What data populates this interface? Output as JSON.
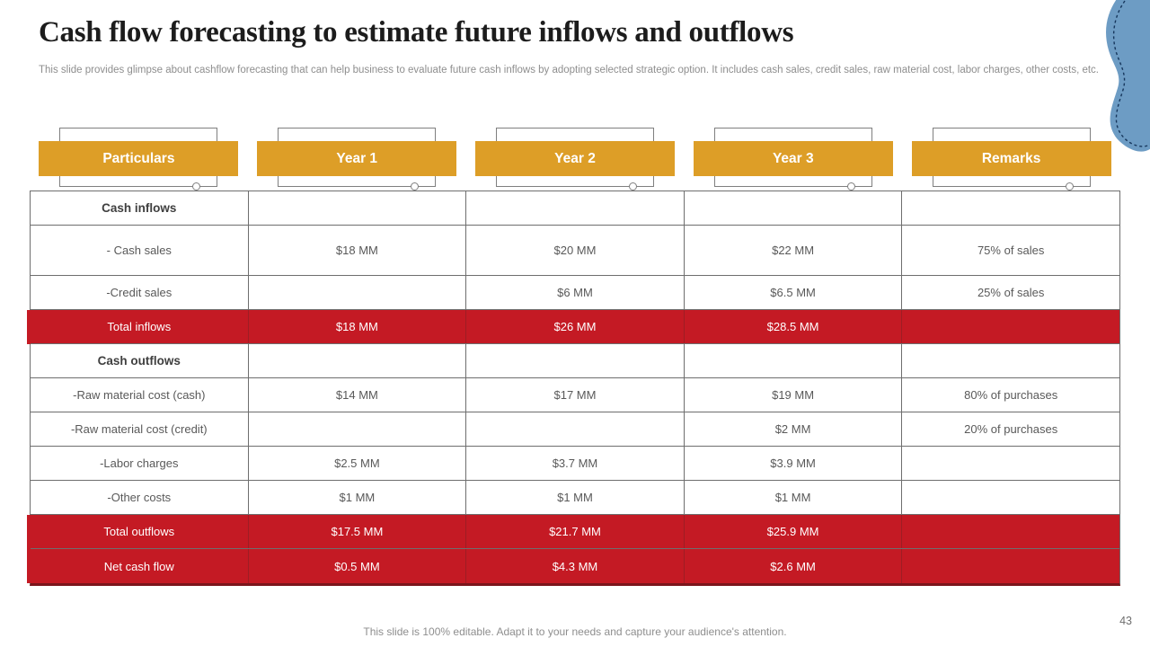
{
  "slide": {
    "title": "Cash flow forecasting to estimate future inflows and outflows",
    "subtitle": "This slide provides glimpse about cashflow forecasting that can help business to evaluate future cash inflows by adopting selected strategic option. It includes cash sales, credit sales, raw material cost, labor charges, other costs, etc.",
    "footer": "This slide is 100% editable. Adapt it to your needs and capture your audience's attention.",
    "page_number": "43"
  },
  "colors": {
    "accent_orange": "#DD9E27",
    "accent_red": "#C41A24",
    "blob_blue": "#6D9CC4",
    "blob_dash_border": "#16365C",
    "border_gray": "#6E6E6E",
    "bottom_border_maroon": "#7B151B"
  },
  "chart_data": {
    "type": "table",
    "title": "Cash flow forecasting to estimate future inflows and outflows",
    "headers": [
      "Particulars",
      "Year 1",
      "Year 2",
      "Year 3",
      "Remarks"
    ],
    "rows": [
      {
        "label": "Cash inflows",
        "bold": true,
        "style": "white",
        "values": [
          "",
          "",
          "",
          ""
        ]
      },
      {
        "label": "- Cash sales",
        "bold": false,
        "style": "white",
        "values": [
          "$18 MM",
          "$20 MM",
          "$22 MM",
          "75% of sales"
        ]
      },
      {
        "label": "-Credit sales",
        "bold": false,
        "style": "white",
        "values": [
          "",
          "$6 MM",
          "$6.5 MM",
          "25% of sales"
        ]
      },
      {
        "label": "Total inflows",
        "bold": false,
        "style": "red",
        "values": [
          "$18 MM",
          "$26 MM",
          "$28.5 MM",
          ""
        ]
      },
      {
        "label": "Cash outflows",
        "bold": true,
        "style": "white",
        "values": [
          "",
          "",
          "",
          ""
        ]
      },
      {
        "label": "-Raw material cost (cash)",
        "bold": false,
        "style": "white",
        "values": [
          "$14 MM",
          "$17 MM",
          "$19 MM",
          "80% of purchases"
        ]
      },
      {
        "label": "-Raw material cost (credit)",
        "bold": false,
        "style": "white",
        "values": [
          "",
          "",
          "$2 MM",
          "20% of purchases"
        ]
      },
      {
        "label": "-Labor charges",
        "bold": false,
        "style": "white",
        "values": [
          "$2.5 MM",
          "$3.7 MM",
          "$3.9 MM",
          ""
        ]
      },
      {
        "label": "-Other costs",
        "bold": false,
        "style": "white",
        "values": [
          "$1 MM",
          "$1 MM",
          "$1 MM",
          ""
        ]
      },
      {
        "label": "Total outflows",
        "bold": false,
        "style": "red",
        "values": [
          "$17.5 MM",
          "$21.7 MM",
          "$25.9 MM",
          ""
        ]
      },
      {
        "label": "Net cash flow",
        "bold": false,
        "style": "red",
        "values": [
          "$0.5 MM",
          "$4.3 MM",
          "$2.6 MM",
          ""
        ]
      }
    ]
  }
}
